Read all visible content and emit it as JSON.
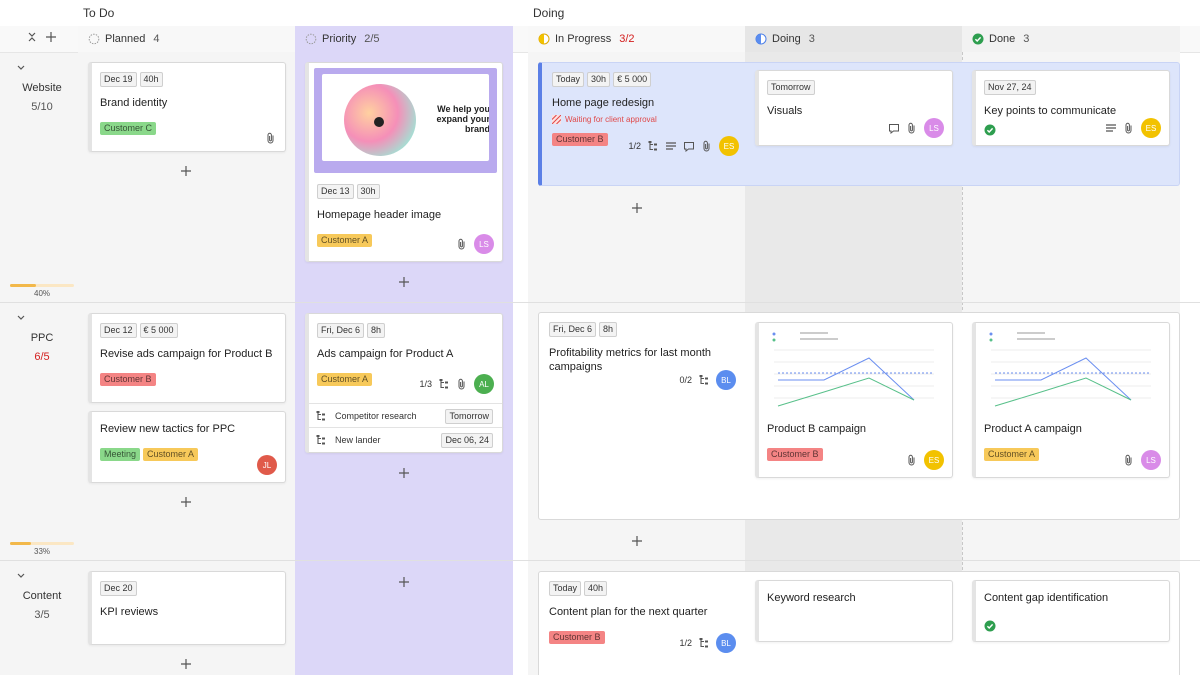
{
  "groups": [
    "To Do",
    "Doing"
  ],
  "columns": [
    {
      "name": "Planned",
      "count": "4",
      "icon": "dashed"
    },
    {
      "name": "Priority",
      "count": "2/5",
      "icon": "dashed"
    },
    {
      "name": "In Progress",
      "count": "3/2",
      "alert": true,
      "icon": "half-yellow"
    },
    {
      "name": "Doing",
      "count": "3",
      "icon": "half-blue"
    },
    {
      "name": "Done",
      "count": "3",
      "icon": "done"
    }
  ],
  "lanes": [
    {
      "name": "Website",
      "count": "5/10",
      "progress": "40%"
    },
    {
      "name": "PPC",
      "count": "6/5",
      "alert": true,
      "progress": "33%"
    },
    {
      "name": "Content",
      "count": "3/5"
    }
  ],
  "cards": [
    {
      "tags": [
        "Dec 19",
        "40h"
      ],
      "title": "Brand identity",
      "labels": [
        {
          "text": "Customer C",
          "color": "#8ad88a"
        }
      ],
      "icons": [
        "attach"
      ]
    },
    {
      "image_text": "We help you expand your brand",
      "tags": [
        "Dec 13",
        "30h"
      ],
      "title": "Homepage header image",
      "labels": [
        {
          "text": "Customer A",
          "color": "#f7c95a"
        }
      ],
      "icons": [
        "attach"
      ],
      "avatar": {
        "initials": "LS",
        "color": "#d98be8"
      }
    },
    {
      "tags": [
        "Today",
        "30h",
        "€ 5 000"
      ],
      "title": "Home page redesign",
      "status": "Waiting for client approval",
      "labels": [
        {
          "text": "Customer B",
          "color": "#f48484"
        }
      ],
      "progress": "1/2",
      "icons": [
        "subtask",
        "desc",
        "comment",
        "attach"
      ],
      "avatar": {
        "initials": "ES",
        "color": "#f2c200"
      },
      "highlight": true
    },
    {
      "tags": [
        "Tomorrow"
      ],
      "title": "Visuals",
      "icons": [
        "comment",
        "attach"
      ],
      "avatar": {
        "initials": "LS",
        "color": "#d98be8"
      }
    },
    {
      "tags": [
        "Nov 27, 24"
      ],
      "title": "Key points to communicate",
      "done": true,
      "icons": [
        "desc",
        "attach"
      ],
      "avatar": {
        "initials": "ES",
        "color": "#f2c200"
      }
    },
    {
      "tags": [
        "Dec 12",
        "€ 5 000"
      ],
      "title": "Revise ads campaign for Product B",
      "labels": [
        {
          "text": "Customer B",
          "color": "#f48484"
        }
      ]
    },
    {
      "title": "Review new tactics for PPC",
      "labels": [
        {
          "text": "Meeting",
          "color": "#8ad88a"
        },
        {
          "text": "Customer A",
          "color": "#f7c95a"
        }
      ],
      "avatar": {
        "initials": "JL",
        "color": "#e05a4a"
      }
    },
    {
      "tags": [
        "Fri, Dec 6",
        "8h"
      ],
      "title": "Ads campaign for Product A",
      "labels": [
        {
          "text": "Customer A",
          "color": "#f7c95a"
        }
      ],
      "progress": "1/3",
      "icons": [
        "subtask",
        "attach"
      ],
      "avatar": {
        "initials": "AL",
        "color": "#4caf50"
      },
      "subtasks": [
        {
          "title": "Competitor research",
          "date": "Tomorrow"
        },
        {
          "title": "New lander",
          "date": "Dec 06, 24"
        }
      ]
    },
    {
      "tags": [
        "Fri, Dec 6",
        "8h"
      ],
      "title": "Profitability metrics for last month campaigns",
      "progress": "0/2",
      "icons": [
        "subtask"
      ],
      "avatar": {
        "initials": "BL",
        "color": "#5b8def"
      }
    },
    {
      "chart": true,
      "title": "Product B campaign",
      "labels": [
        {
          "text": "Customer B",
          "color": "#f48484"
        }
      ],
      "icons": [
        "attach"
      ],
      "avatar": {
        "initials": "ES",
        "color": "#f2c200"
      }
    },
    {
      "chart": true,
      "title": "Product A campaign",
      "labels": [
        {
          "text": "Customer A",
          "color": "#f7c95a"
        }
      ],
      "icons": [
        "attach"
      ],
      "avatar": {
        "initials": "LS",
        "color": "#d98be8"
      }
    },
    {
      "tags": [
        "Dec 20"
      ],
      "title": "KPI reviews"
    },
    {
      "tags": [
        "Today",
        "40h"
      ],
      "title": "Content plan for the next quarter",
      "labels": [
        {
          "text": "Customer B",
          "color": "#f48484"
        }
      ],
      "progress": "1/2",
      "icons": [
        "subtask"
      ],
      "avatar": {
        "initials": "BL",
        "color": "#5b8def"
      }
    },
    {
      "title": "Keyword research"
    },
    {
      "title": "Content gap identification",
      "done": true
    }
  ]
}
